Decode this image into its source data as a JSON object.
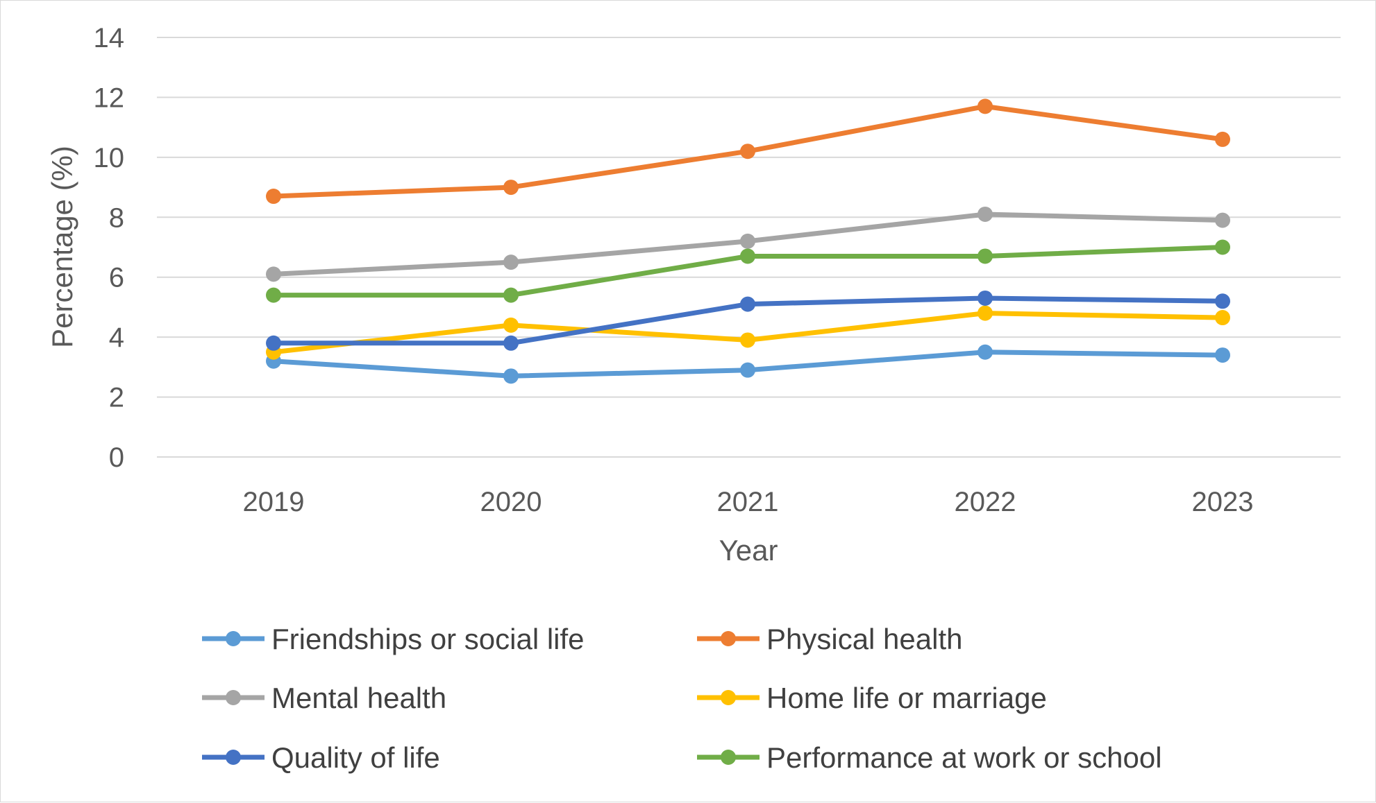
{
  "chart_data": {
    "type": "line",
    "title": "",
    "xlabel": "Year",
    "ylabel": "Percentage (%)",
    "categories": [
      "2019",
      "2020",
      "2021",
      "2022",
      "2023"
    ],
    "ylim": [
      0,
      14
    ],
    "yticks": [
      0,
      2,
      4,
      6,
      8,
      10,
      12,
      14
    ],
    "grid": "horizontal",
    "legend_position": "bottom",
    "series": [
      {
        "name": "Friendships or social life",
        "color": "#5B9BD5",
        "values": [
          3.2,
          2.7,
          2.9,
          3.5,
          3.4
        ]
      },
      {
        "name": "Physical health",
        "color": "#ED7D31",
        "values": [
          8.7,
          9.0,
          10.2,
          11.7,
          10.6
        ]
      },
      {
        "name": "Mental health",
        "color": "#A5A5A5",
        "values": [
          6.1,
          6.5,
          7.2,
          8.1,
          7.9
        ]
      },
      {
        "name": "Home life or marriage",
        "color": "#FFC000",
        "values": [
          3.5,
          4.4,
          3.9,
          4.8,
          4.65
        ]
      },
      {
        "name": "Quality of life",
        "color": "#4472C4",
        "values": [
          3.8,
          3.8,
          5.1,
          5.3,
          5.2
        ]
      },
      {
        "name": "Performance at work or school",
        "color": "#70AD47",
        "values": [
          5.4,
          5.4,
          6.7,
          6.7,
          7.0
        ]
      }
    ]
  }
}
